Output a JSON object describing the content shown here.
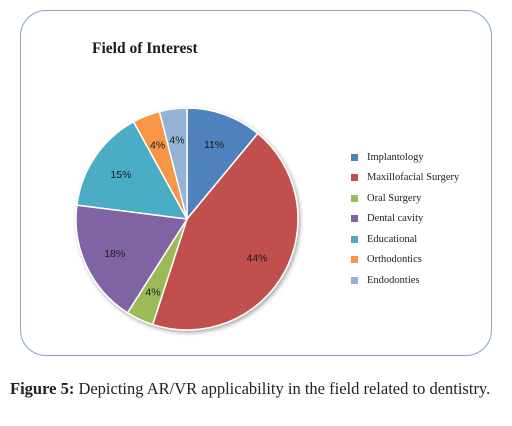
{
  "chart_data": {
    "type": "pie",
    "title": "Field of Interest",
    "categories": [
      "Implantology",
      "Maxillofacial Surgery",
      "Oral Surgery",
      "Dental cavity",
      "Educational",
      "Orthodontics",
      "Endodonties"
    ],
    "values": [
      11,
      44,
      4,
      18,
      15,
      4,
      4
    ],
    "labels": [
      "11%",
      "44%",
      "4%",
      "18%",
      "15%",
      "4%",
      "4%"
    ],
    "colors": [
      "#4f81bd",
      "#c0504d",
      "#9bbb59",
      "#8064a2",
      "#4bacc6",
      "#f79646",
      "#95b3d7"
    ],
    "start_angle_deg": 0,
    "direction": "clockwise",
    "legend_position": "right"
  },
  "caption": {
    "label": "Figure 5:",
    "text": " Depicting AR/VR applicability in the field related to dentistry."
  }
}
